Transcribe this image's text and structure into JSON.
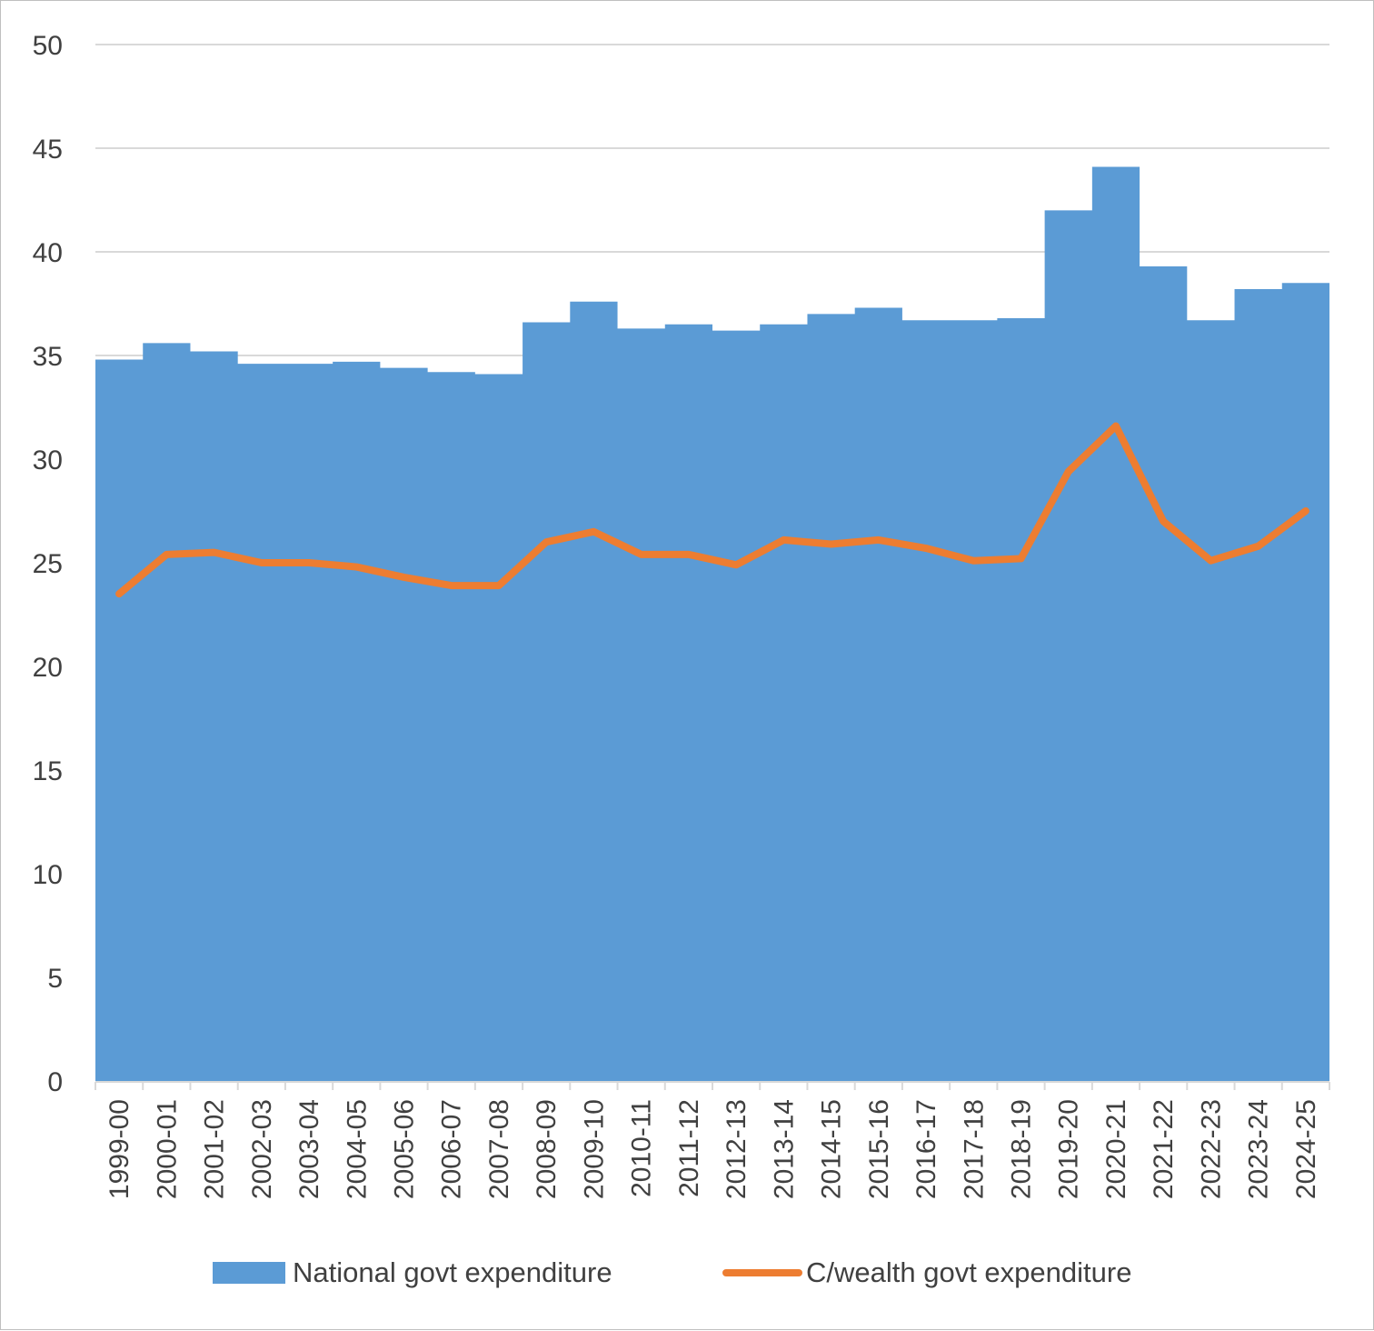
{
  "chart_data": {
    "type": "area",
    "categories": [
      "1999-00",
      "2000-01",
      "2001-02",
      "2002-03",
      "2003-04",
      "2004-05",
      "2005-06",
      "2006-07",
      "2007-08",
      "2008-09",
      "2009-10",
      "2010-11",
      "2011-12",
      "2012-13",
      "2013-14",
      "2014-15",
      "2015-16",
      "2016-17",
      "2017-18",
      "2018-19",
      "2019-20",
      "2020-21",
      "2021-22",
      "2022-23",
      "2023-24",
      "2024-25"
    ],
    "series": [
      {
        "name": "National govt expenditure",
        "type": "area",
        "color": "#5b9bd5",
        "values": [
          34.8,
          35.6,
          35.2,
          34.6,
          34.6,
          34.7,
          34.4,
          34.2,
          34.1,
          36.6,
          37.6,
          36.3,
          36.5,
          36.2,
          36.5,
          37.0,
          37.3,
          36.7,
          36.7,
          36.8,
          42.0,
          44.1,
          39.3,
          36.7,
          38.2,
          38.5
        ]
      },
      {
        "name": "C/wealth govt expenditure",
        "type": "line",
        "color": "#ed7d31",
        "values": [
          23.5,
          25.4,
          25.5,
          25.0,
          25.0,
          24.8,
          24.3,
          23.9,
          23.9,
          26.0,
          26.5,
          25.4,
          25.4,
          24.9,
          26.1,
          25.9,
          26.1,
          25.7,
          25.1,
          25.2,
          29.4,
          31.6,
          27.0,
          25.1,
          25.8,
          27.5
        ]
      }
    ],
    "yticks": [
      0,
      5,
      10,
      15,
      20,
      25,
      30,
      35,
      40,
      45,
      50
    ],
    "ylim": [
      0,
      50
    ],
    "grid": true,
    "legend_position": "bottom",
    "title": "",
    "xlabel": "",
    "ylabel": ""
  }
}
